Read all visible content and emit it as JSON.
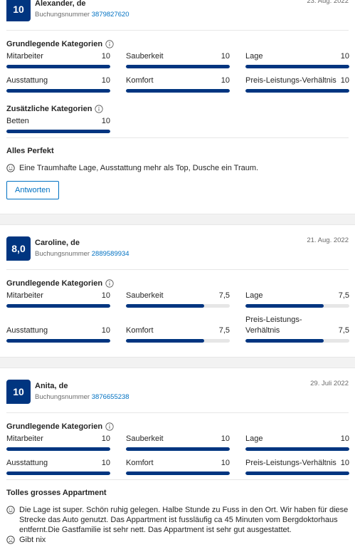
{
  "score_range": [
    0,
    10
  ],
  "reviews": [
    {
      "score": "10",
      "name": "Alexander, de",
      "booking_label": "Buchungsnummer",
      "booking_number": "3879827620",
      "date": "23. Aug. 2022",
      "sections": [
        {
          "title": "Grundlegende Kategorien",
          "categories": [
            {
              "name": "Mitarbeiter",
              "value": 10,
              "label": "10"
            },
            {
              "name": "Sauberkeit",
              "value": 10,
              "label": "10"
            },
            {
              "name": "Lage",
              "value": 10,
              "label": "10"
            },
            {
              "name": "Ausstattung",
              "value": 10,
              "label": "10"
            },
            {
              "name": "Komfort",
              "value": 10,
              "label": "10"
            },
            {
              "name": "Preis-Leistungs-Verhältnis",
              "value": 10,
              "label": "10"
            }
          ]
        },
        {
          "title": "Zusätzliche Kategorien",
          "categories": [
            {
              "name": "Betten",
              "value": 10,
              "label": "10"
            }
          ]
        }
      ],
      "comment_title": "Alles Perfekt",
      "positive": "Eine Traumhafte Lage, Ausstattung mehr als Top, Dusche ein Traum.",
      "reply_button": "Antworten"
    },
    {
      "score": "8,0",
      "name": "Caroline, de",
      "booking_label": "Buchungsnummer",
      "booking_number": "2889589934",
      "date": "21. Aug. 2022",
      "sections": [
        {
          "title": "Grundlegende Kategorien",
          "categories": [
            {
              "name": "Mitarbeiter",
              "value": 10,
              "label": "10"
            },
            {
              "name": "Sauberkeit",
              "value": 7.5,
              "label": "7,5"
            },
            {
              "name": "Lage",
              "value": 7.5,
              "label": "7,5"
            },
            {
              "name": "Ausstattung",
              "value": 10,
              "label": "10"
            },
            {
              "name": "Komfort",
              "value": 7.5,
              "label": "7,5"
            },
            {
              "name": "Preis-Leistungs-Verhältnis",
              "value": 7.5,
              "label": "7,5"
            }
          ]
        }
      ]
    },
    {
      "score": "10",
      "name": "Anita, de",
      "booking_label": "Buchungsnummer",
      "booking_number": "3876655238",
      "date": "29. Juli 2022",
      "sections": [
        {
          "title": "Grundlegende Kategorien",
          "categories": [
            {
              "name": "Mitarbeiter",
              "value": 10,
              "label": "10"
            },
            {
              "name": "Sauberkeit",
              "value": 10,
              "label": "10"
            },
            {
              "name": "Lage",
              "value": 10,
              "label": "10"
            },
            {
              "name": "Ausstattung",
              "value": 10,
              "label": "10"
            },
            {
              "name": "Komfort",
              "value": 10,
              "label": "10"
            },
            {
              "name": "Preis-Leistungs-Verhältnis",
              "value": 10,
              "label": "10"
            }
          ]
        }
      ],
      "comment_title": "Tolles grosses Appartment",
      "positive": "Die Lage ist super. Schön ruhig gelegen. Halbe Stunde zu Fuss in den Ort. Wir haben für diese Strecke das Auto genutzt. Das Appartment ist fussläufig ca 45 Minuten vom Bergdoktorhaus entfernt.Die Gastfamilie ist sehr nett. Das Appartment ist sehr gut ausgestattet.",
      "negative": "Gibt nix"
    }
  ]
}
